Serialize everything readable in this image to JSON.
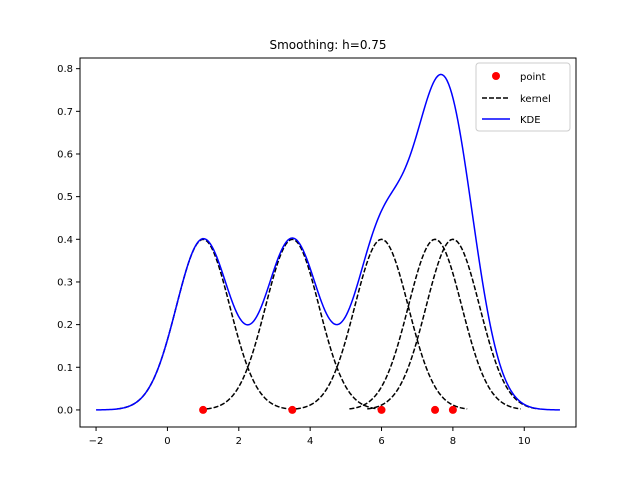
{
  "chart_data": {
    "type": "line",
    "title": "Smoothing: h=0.75",
    "xlabel": "",
    "ylabel": "",
    "xlim": [
      -2.45,
      11.45
    ],
    "ylim": [
      -0.04,
      0.825
    ],
    "x_ticks": [
      -2,
      0,
      2,
      4,
      6,
      8,
      10
    ],
    "x_tick_labels": [
      "−2",
      "0",
      "2",
      "4",
      "6",
      "8",
      "10"
    ],
    "y_ticks": [
      0.0,
      0.1,
      0.2,
      0.3,
      0.4,
      0.5,
      0.6,
      0.7,
      0.8
    ],
    "y_tick_labels": [
      "0.0",
      "0.1",
      "0.2",
      "0.3",
      "0.4",
      "0.5",
      "0.6",
      "0.7",
      "0.8"
    ],
    "grid": false,
    "legend_position": "top-right",
    "bandwidth": 0.75,
    "points": {
      "name": "point",
      "color": "#ff0000",
      "x": [
        1,
        3.5,
        6,
        7.5,
        8
      ],
      "y": [
        0,
        0,
        0,
        0,
        0
      ]
    },
    "kernels": {
      "name": "kernel",
      "color": "#000000",
      "style": "dashed",
      "half_width": 3.2,
      "peak": 0.4
    },
    "kde": {
      "name": "KDE",
      "color": "#0000ff",
      "x_range": [
        -2,
        11
      ],
      "x": [
        -2,
        -1,
        0,
        0.5,
        1,
        1.5,
        2,
        2.25,
        2.5,
        3,
        3.5,
        4,
        4.5,
        4.75,
        5,
        5.5,
        6,
        6.5,
        7,
        7.5,
        7.75,
        8,
        8.5,
        9,
        10,
        11
      ],
      "y": [
        0.0,
        0.0,
        0.1,
        0.3,
        0.4,
        0.3,
        0.2,
        0.2,
        0.22,
        0.33,
        0.4,
        0.33,
        0.2,
        0.2,
        0.24,
        0.35,
        0.47,
        0.54,
        0.65,
        0.77,
        0.78,
        0.74,
        0.4,
        0.13,
        0.005,
        0.0
      ]
    },
    "legend": [
      "point",
      "kernel",
      "KDE"
    ]
  }
}
